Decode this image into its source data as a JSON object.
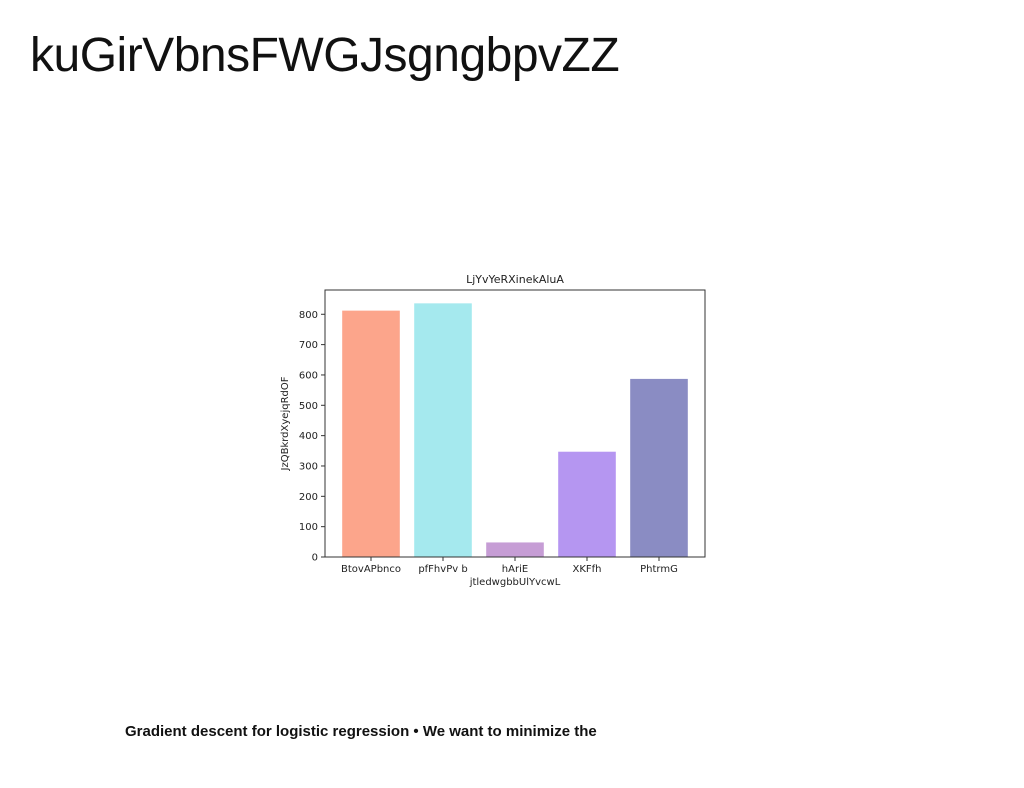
{
  "slide": {
    "title": "kuGirVbnsFWGJsgngbpvZZ",
    "caption": "Gradient descent for logistic regression • We want to minimize the"
  },
  "chart_data": {
    "type": "bar",
    "title": "LjYvYeRXinekAluA",
    "xlabel": "jtledwgbbUlYvcwL",
    "ylabel": "JzQBkrdXyejqRdOF",
    "categories": [
      "BtovAPbnco",
      "pfFhvPv b",
      "hAriE",
      "XKFfh",
      "PhtrmG"
    ],
    "values": [
      812,
      836,
      48,
      347,
      587
    ],
    "colors": [
      "#FCA58B",
      "#A5E9EE",
      "#C69DD5",
      "#B596F1",
      "#8A8CC3"
    ],
    "ylim": [
      0,
      880
    ],
    "yticks": [
      0,
      100,
      200,
      300,
      400,
      500,
      600,
      700,
      800
    ],
    "grid": false,
    "legend": "none"
  }
}
